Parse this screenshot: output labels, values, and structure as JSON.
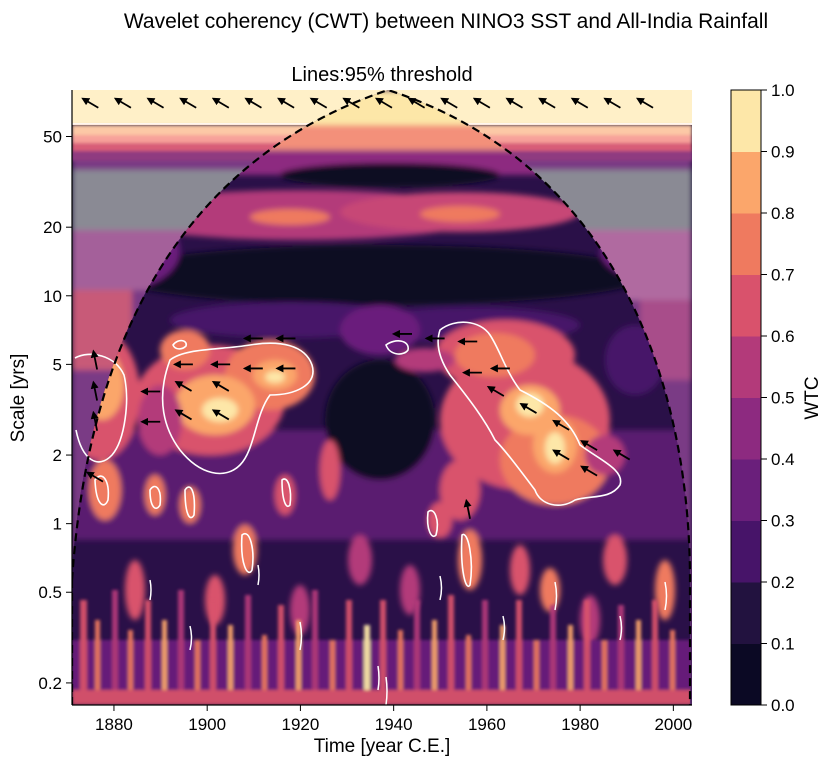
{
  "chart_data": {
    "type": "heatmap",
    "suptitle": "Wavelet coherency (CWT) between NINO3 SST and All-India Rainfall",
    "title": "Lines:95% threshold",
    "xlabel": "Time [year C.E.]",
    "ylabel": "Scale [yrs]",
    "colorbar_label": "WTC",
    "xlim": [
      1871,
      2004
    ],
    "ylim": [
      0.16,
      80
    ],
    "yscale": "log",
    "x_ticks": [
      1880,
      1900,
      1920,
      1940,
      1960,
      1980,
      2000
    ],
    "y_ticks": [
      0.2,
      0.5,
      1,
      2,
      5,
      10,
      20,
      50
    ],
    "y_tick_labels": [
      "0.2",
      "0.5",
      "1",
      "2",
      "5",
      "10",
      "20",
      "50"
    ],
    "colorbar_ticks": [
      0.0,
      0.1,
      0.2,
      0.3,
      0.4,
      0.5,
      0.6,
      0.7,
      0.8,
      0.9,
      1.0
    ],
    "colorbar_tick_labels": [
      "0.0",
      "0.1",
      "0.2",
      "0.3",
      "0.4",
      "0.5",
      "0.6",
      "0.7",
      "0.8",
      "0.9",
      "1.0"
    ],
    "levels": [
      0.0,
      0.1,
      0.2,
      0.3,
      0.4,
      0.5,
      0.6,
      0.7,
      0.8,
      0.9,
      1.0
    ],
    "level_colors": [
      "#0b0924",
      "#22123f",
      "#471469",
      "#6a1f7b",
      "#8d2a80",
      "#b33a7a",
      "#d9526c",
      "#ef7a5f",
      "#fba66b",
      "#fde7a8"
    ],
    "colormap": "magma",
    "cone_of_influence": "dashed black",
    "significance_contours": "white, 95% threshold",
    "high_coherence_regions": [
      {
        "x": [
          1872,
          1882
        ],
        "scale": [
          2.5,
          6
        ],
        "wtc": 0.8
      },
      {
        "x": [
          1886,
          1917
        ],
        "scale": [
          2.2,
          7
        ],
        "wtc": 0.9
      },
      {
        "x": [
          1955,
          1990
        ],
        "scale": [
          1.3,
          7
        ],
        "wtc": 0.9
      },
      {
        "x": [
          1920,
          1960
        ],
        "scale": [
          20,
          45
        ],
        "wtc": 0.75
      }
    ],
    "phase_arrows": [
      {
        "x": 1875,
        "scale": 70,
        "dir": "upper-left"
      },
      {
        "x": 1882,
        "scale": 70,
        "dir": "upper-left"
      },
      {
        "x": 1889,
        "scale": 70,
        "dir": "upper-left"
      },
      {
        "x": 1896,
        "scale": 70,
        "dir": "upper-left"
      },
      {
        "x": 1903,
        "scale": 70,
        "dir": "upper-left"
      },
      {
        "x": 1910,
        "scale": 70,
        "dir": "upper-left"
      },
      {
        "x": 1917,
        "scale": 70,
        "dir": "upper-left"
      },
      {
        "x": 1924,
        "scale": 70,
        "dir": "upper-left"
      },
      {
        "x": 1931,
        "scale": 70,
        "dir": "upper-left"
      },
      {
        "x": 1938,
        "scale": 70,
        "dir": "upper-left"
      },
      {
        "x": 1945,
        "scale": 70,
        "dir": "upper-left"
      },
      {
        "x": 1952,
        "scale": 70,
        "dir": "upper-left"
      },
      {
        "x": 1959,
        "scale": 70,
        "dir": "upper-left"
      },
      {
        "x": 1966,
        "scale": 70,
        "dir": "upper-left"
      },
      {
        "x": 1973,
        "scale": 70,
        "dir": "upper-left"
      },
      {
        "x": 1980,
        "scale": 70,
        "dir": "upper-left"
      },
      {
        "x": 1987,
        "scale": 70,
        "dir": "upper-left"
      },
      {
        "x": 1994,
        "scale": 70,
        "dir": "upper-left"
      },
      {
        "x": 1876,
        "scale": 5.2,
        "dir": "up"
      },
      {
        "x": 1876,
        "scale": 3.8,
        "dir": "up"
      },
      {
        "x": 1876,
        "scale": 2.8,
        "dir": "up"
      },
      {
        "x": 1876,
        "scale": 1.6,
        "dir": "upper-left"
      },
      {
        "x": 1888,
        "scale": 3.8,
        "dir": "left"
      },
      {
        "x": 1888,
        "scale": 2.8,
        "dir": "left"
      },
      {
        "x": 1895,
        "scale": 5.0,
        "dir": "left"
      },
      {
        "x": 1895,
        "scale": 4.0,
        "dir": "upper-left"
      },
      {
        "x": 1895,
        "scale": 3.0,
        "dir": "upper-left"
      },
      {
        "x": 1903,
        "scale": 5.0,
        "dir": "left"
      },
      {
        "x": 1903,
        "scale": 4.0,
        "dir": "upper-left"
      },
      {
        "x": 1903,
        "scale": 3.0,
        "dir": "upper-left"
      },
      {
        "x": 1910,
        "scale": 6.5,
        "dir": "left"
      },
      {
        "x": 1910,
        "scale": 4.8,
        "dir": "left"
      },
      {
        "x": 1917,
        "scale": 6.5,
        "dir": "left"
      },
      {
        "x": 1917,
        "scale": 4.8,
        "dir": "left"
      },
      {
        "x": 1942,
        "scale": 6.8,
        "dir": "left"
      },
      {
        "x": 1949,
        "scale": 6.5,
        "dir": "left"
      },
      {
        "x": 1956,
        "scale": 6.3,
        "dir": "left"
      },
      {
        "x": 1957,
        "scale": 4.6,
        "dir": "left"
      },
      {
        "x": 1963,
        "scale": 4.8,
        "dir": "left"
      },
      {
        "x": 1962,
        "scale": 3.8,
        "dir": "upper-left"
      },
      {
        "x": 1969,
        "scale": 3.2,
        "dir": "upper-left"
      },
      {
        "x": 1976,
        "scale": 2.7,
        "dir": "upper-left"
      },
      {
        "x": 1976,
        "scale": 2.0,
        "dir": "upper-left"
      },
      {
        "x": 1982,
        "scale": 2.2,
        "dir": "upper-left"
      },
      {
        "x": 1982,
        "scale": 1.7,
        "dir": "upper-left"
      },
      {
        "x": 1989,
        "scale": 2.0,
        "dir": "upper-left"
      },
      {
        "x": 1956,
        "scale": 1.15,
        "dir": "up"
      }
    ]
  }
}
